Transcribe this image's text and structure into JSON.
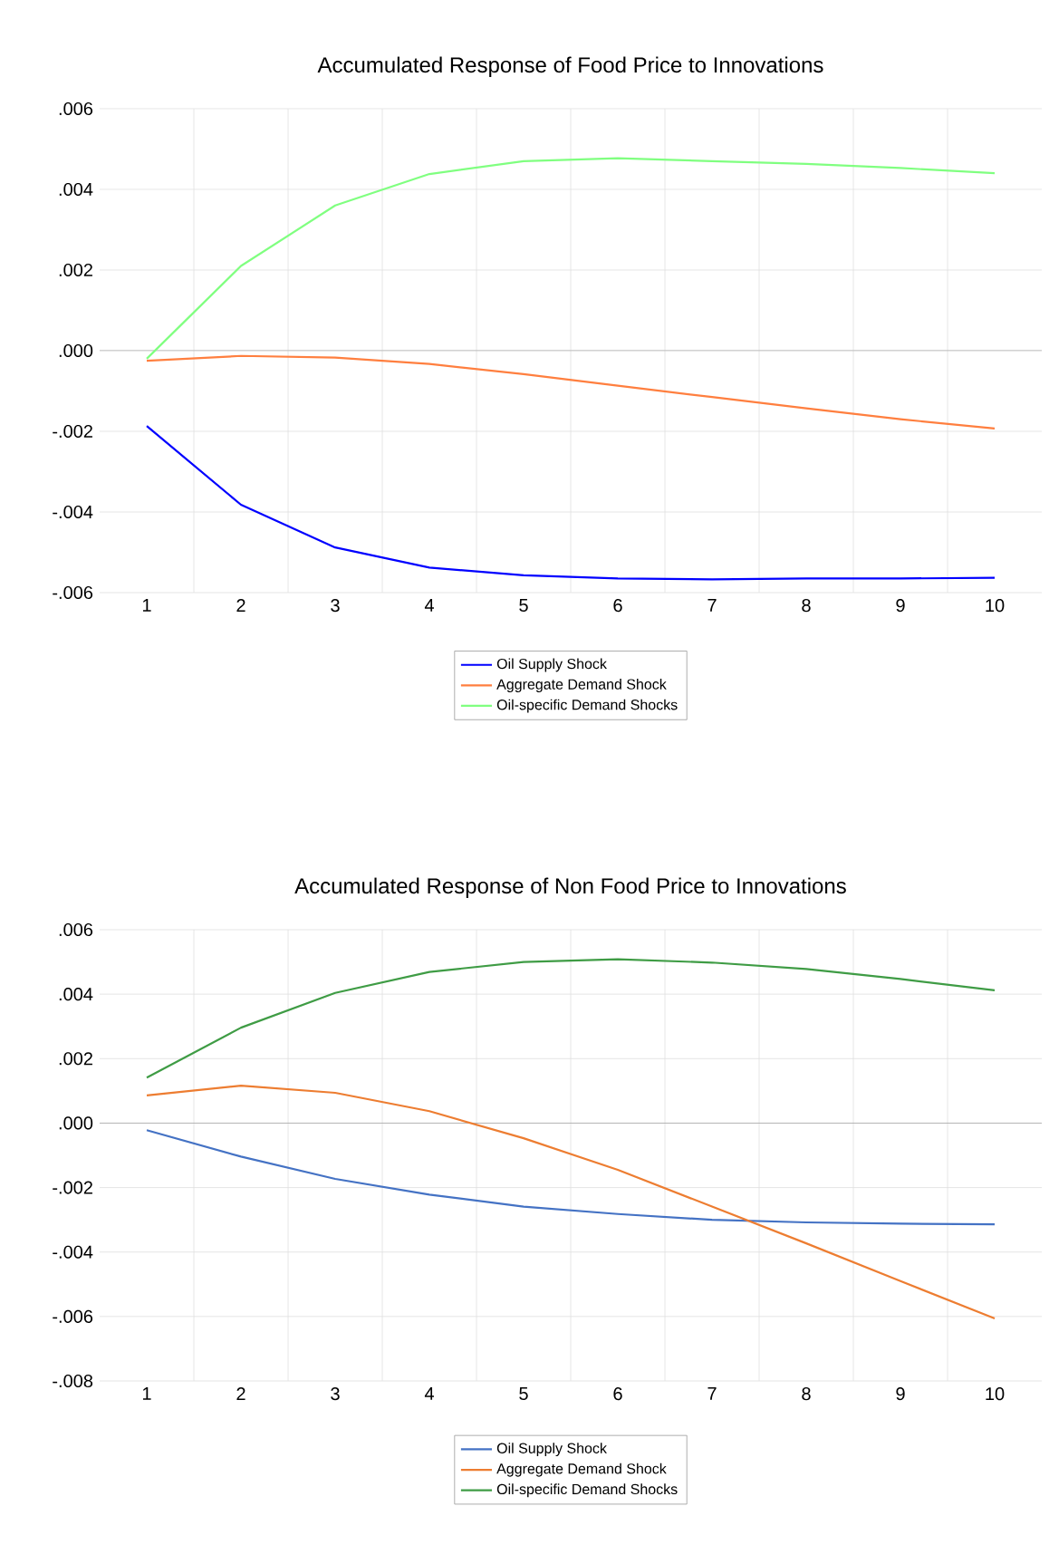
{
  "chart_data": [
    {
      "type": "line",
      "title": "Accumulated Response of Food Price to Innovations",
      "categories": [
        "1",
        "2",
        "3",
        "4",
        "5",
        "6",
        "7",
        "8",
        "9",
        "10"
      ],
      "ylim": [
        -0.006,
        0.006
      ],
      "yticks": [
        {
          "value": -0.006,
          "label": "-.006"
        },
        {
          "value": -0.004,
          "label": "-.004"
        },
        {
          "value": -0.002,
          "label": "-.002"
        },
        {
          "value": 0,
          "label": ".000"
        },
        {
          "value": 0.002,
          "label": ".002"
        },
        {
          "value": 0.004,
          "label": ".004"
        },
        {
          "value": 0.006,
          "label": ".006"
        }
      ],
      "grid": true,
      "legend": "bottom",
      "marker": "none",
      "line_style": "solid",
      "series": [
        {
          "name": "Oil Supply Shock",
          "color": "#0000ff",
          "values": [
            -0.00187,
            -0.00382,
            -0.00488,
            -0.00538,
            -0.00557,
            -0.00565,
            -0.00567,
            -0.00565,
            -0.00565,
            -0.00563
          ]
        },
        {
          "name": "Aggregate Demand Shock",
          "color": "#ff7f3f",
          "values": [
            -0.00025,
            -0.00013,
            -0.00017,
            -0.00033,
            -0.00058,
            -0.00087,
            -0.00115,
            -0.00143,
            -0.0017,
            -0.00193
          ]
        },
        {
          "name": "Oil-specific Demand Shocks",
          "color": "#80ff80",
          "values": [
            -0.0002,
            0.0021,
            0.0036,
            0.00438,
            0.0047,
            0.00477,
            0.0047,
            0.00463,
            0.00453,
            0.0044
          ]
        }
      ]
    },
    {
      "type": "line",
      "title": "Accumulated Response of Non Food Price to Innovations",
      "categories": [
        "1",
        "2",
        "3",
        "4",
        "5",
        "6",
        "7",
        "8",
        "9",
        "10"
      ],
      "ylim": [
        -0.008,
        0.006
      ],
      "yticks": [
        {
          "value": -0.008,
          "label": "-.008"
        },
        {
          "value": -0.006,
          "label": "-.006"
        },
        {
          "value": -0.004,
          "label": "-.004"
        },
        {
          "value": -0.002,
          "label": "-.002"
        },
        {
          "value": 0,
          "label": ".000"
        },
        {
          "value": 0.002,
          "label": ".002"
        },
        {
          "value": 0.004,
          "label": ".004"
        },
        {
          "value": 0.006,
          "label": ".006"
        }
      ],
      "grid": true,
      "legend": "bottom",
      "marker": "none",
      "line_style": "solid",
      "series": [
        {
          "name": "Oil Supply Shock",
          "color": "#4472c4",
          "values": [
            -0.00022,
            -0.00104,
            -0.00173,
            -0.00222,
            -0.00259,
            -0.00282,
            -0.003,
            -0.00308,
            -0.00312,
            -0.00314
          ]
        },
        {
          "name": "Aggregate Demand Shock",
          "color": "#ed7d31",
          "values": [
            0.00086,
            0.00116,
            0.00094,
            0.00037,
            -0.00047,
            -0.00145,
            -0.00259,
            -0.00373,
            -0.0049,
            -0.00606
          ]
        },
        {
          "name": "Oil-specific Demand Shocks",
          "color": "#3f9c45",
          "values": [
            0.00141,
            0.00296,
            0.00404,
            0.00469,
            0.005,
            0.00508,
            0.00498,
            0.00478,
            0.00447,
            0.00412
          ]
        }
      ]
    }
  ]
}
